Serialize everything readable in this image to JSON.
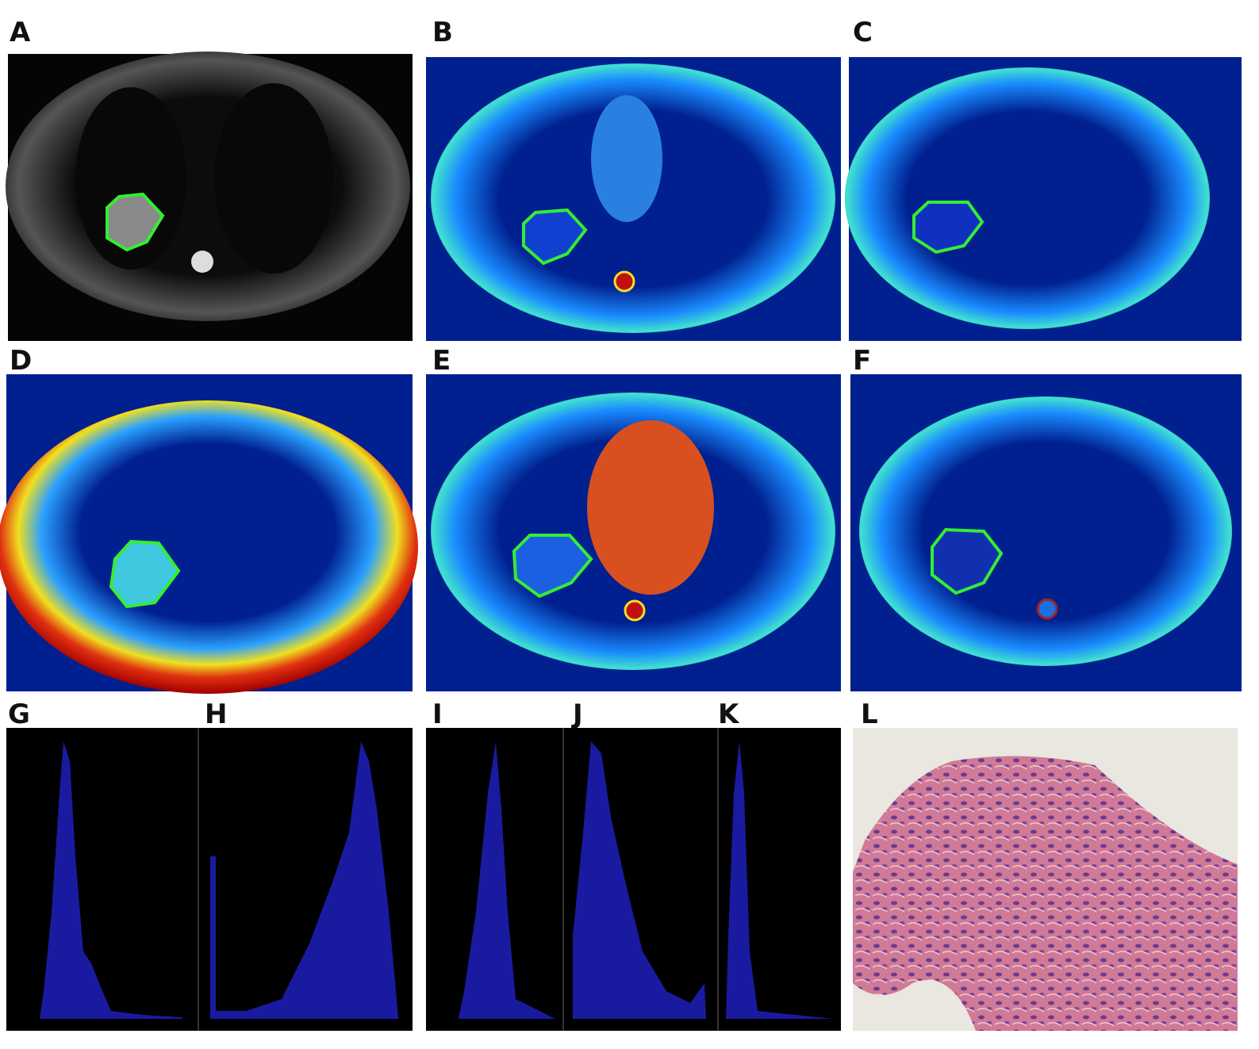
{
  "panels": [
    {
      "label": "A"
    },
    {
      "label": "B"
    },
    {
      "label": "C"
    },
    {
      "label": "D"
    },
    {
      "label": "E"
    },
    {
      "label": "F"
    },
    {
      "label": "G"
    },
    {
      "label": "H"
    },
    {
      "label": "I"
    },
    {
      "label": "J"
    },
    {
      "label": "K"
    },
    {
      "label": "L"
    }
  ]
}
